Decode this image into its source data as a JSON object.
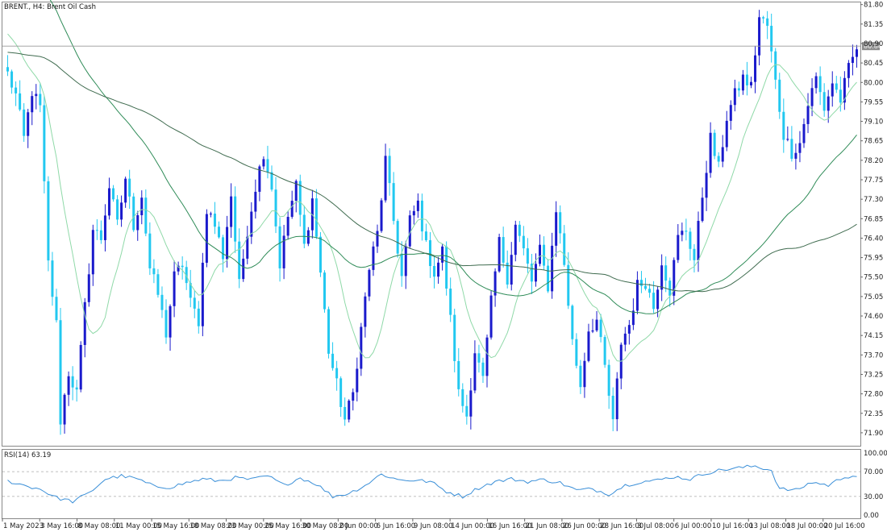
{
  "chart_data": {
    "type": "candlestick",
    "title": "BRENT., H4:  Brent Oil Cash",
    "colors": {
      "bull_candle": "#1a1acc",
      "bear_candle": "#22c8f0",
      "ma_fast": "#8fd9a8",
      "ma_mid": "#2e8b57",
      "ma_slow": "#3f6b4f",
      "rsi_line": "#3a8fd8",
      "grid": "#999999",
      "price_tag_bg": "#8c8c8c"
    },
    "price_axis": {
      "ylim": [
        71.6,
        81.85
      ],
      "ticks": [
        "81.80",
        "81.35",
        "80.90",
        "80.45",
        "80.00",
        "79.55",
        "79.10",
        "78.65",
        "78.20",
        "77.75",
        "77.30",
        "76.85",
        "76.40",
        "75.95",
        "75.50",
        "75.05",
        "74.60",
        "74.15",
        "73.70",
        "73.25",
        "72.80",
        "72.35",
        "71.90"
      ],
      "current_price": "80.84"
    },
    "time_axis": {
      "ticks": [
        "1 May 2023",
        "3 May 16:00",
        "8 May 08:00",
        "11 May 00:00",
        "15 May 16:00",
        "18 May 08:00",
        "23 May 00:00",
        "25 May 16:00",
        "30 May 08:00",
        "2 Jun 00:00",
        "6 Jun 16:00",
        "9 Jun 08:00",
        "14 Jun 00:00",
        "16 Jun 16:00",
        "21 Jun 08:00",
        "26 Jun 00:00",
        "28 Jun 16:00",
        "3 Jul 08:00",
        "6 Jul 00:00",
        "10 Jul 16:00",
        "13 Jul 08:00",
        "18 Jul 00:00",
        "20 Jul 16:00"
      ]
    },
    "price_path": [
      [
        0,
        80.2
      ],
      [
        2,
        79.7
      ],
      [
        4,
        78.7
      ],
      [
        6,
        79.8
      ],
      [
        8,
        79.4
      ],
      [
        10,
        75.8
      ],
      [
        12,
        74.4
      ],
      [
        13,
        72.2
      ],
      [
        15,
        73.3
      ],
      [
        17,
        72.8
      ],
      [
        19,
        74.8
      ],
      [
        21,
        76.6
      ],
      [
        23,
        76.4
      ],
      [
        25,
        77.6
      ],
      [
        27,
        76.7
      ],
      [
        29,
        77.8
      ],
      [
        31,
        76.7
      ],
      [
        33,
        77.4
      ],
      [
        35,
        75.7
      ],
      [
        37,
        75.1
      ],
      [
        39,
        74.2
      ],
      [
        41,
        75.5
      ],
      [
        43,
        75.8
      ],
      [
        45,
        74.9
      ],
      [
        47,
        74.5
      ],
      [
        49,
        77.1
      ],
      [
        51,
        76.7
      ],
      [
        53,
        76.0
      ],
      [
        55,
        77.4
      ],
      [
        57,
        75.3
      ],
      [
        59,
        76.6
      ],
      [
        61,
        77.6
      ],
      [
        63,
        78.4
      ],
      [
        65,
        77.6
      ],
      [
        67,
        75.8
      ],
      [
        69,
        76.9
      ],
      [
        71,
        77.6
      ],
      [
        73,
        76.2
      ],
      [
        75,
        77.3
      ],
      [
        77,
        75.6
      ],
      [
        79,
        73.8
      ],
      [
        81,
        73.0
      ],
      [
        83,
        72.2
      ],
      [
        85,
        72.8
      ],
      [
        87,
        74.3
      ],
      [
        89,
        75.7
      ],
      [
        91,
        76.5
      ],
      [
        93,
        78.2
      ],
      [
        95,
        76.8
      ],
      [
        97,
        75.5
      ],
      [
        99,
        76.8
      ],
      [
        101,
        77.2
      ],
      [
        103,
        76.2
      ],
      [
        105,
        75.6
      ],
      [
        107,
        76.1
      ],
      [
        109,
        74.5
      ],
      [
        111,
        72.8
      ],
      [
        113,
        72.3
      ],
      [
        115,
        73.8
      ],
      [
        117,
        73.1
      ],
      [
        119,
        74.9
      ],
      [
        121,
        76.3
      ],
      [
        123,
        75.5
      ],
      [
        125,
        76.7
      ],
      [
        127,
        76.1
      ],
      [
        129,
        75.4
      ],
      [
        131,
        76.1
      ],
      [
        133,
        75.3
      ],
      [
        135,
        77.1
      ],
      [
        137,
        75.8
      ],
      [
        139,
        74.0
      ],
      [
        141,
        73.0
      ],
      [
        143,
        74.3
      ],
      [
        145,
        74.5
      ],
      [
        147,
        73.4
      ],
      [
        149,
        72.1
      ],
      [
        151,
        74.0
      ],
      [
        153,
        74.4
      ],
      [
        155,
        75.3
      ],
      [
        157,
        75.4
      ],
      [
        159,
        74.8
      ],
      [
        161,
        75.9
      ],
      [
        163,
        75.2
      ],
      [
        165,
        76.4
      ],
      [
        167,
        76.6
      ],
      [
        169,
        75.9
      ],
      [
        171,
        77.4
      ],
      [
        173,
        78.7
      ],
      [
        175,
        78.0
      ],
      [
        177,
        79.2
      ],
      [
        179,
        79.7
      ],
      [
        181,
        80.1
      ],
      [
        183,
        79.9
      ],
      [
        185,
        81.5
      ],
      [
        187,
        81.3
      ],
      [
        189,
        80.0
      ],
      [
        191,
        78.8
      ],
      [
        193,
        78.4
      ],
      [
        195,
        78.6
      ],
      [
        197,
        79.5
      ],
      [
        199,
        80.1
      ],
      [
        201,
        79.4
      ],
      [
        203,
        80.0
      ],
      [
        205,
        79.6
      ],
      [
        207,
        80.3
      ],
      [
        209,
        80.8
      ]
    ],
    "rsi": {
      "label": "RSI(14) 63.19",
      "ylim": [
        0,
        100
      ],
      "ticks": [
        "100.00",
        "70.00",
        "30.00",
        "0.00"
      ],
      "levels": [
        70,
        30
      ],
      "values": [
        [
          0,
          55
        ],
        [
          4,
          48
        ],
        [
          8,
          42
        ],
        [
          12,
          28
        ],
        [
          16,
          22
        ],
        [
          20,
          35
        ],
        [
          24,
          58
        ],
        [
          28,
          63
        ],
        [
          32,
          58
        ],
        [
          36,
          46
        ],
        [
          40,
          45
        ],
        [
          44,
          52
        ],
        [
          48,
          58
        ],
        [
          52,
          55
        ],
        [
          56,
          60
        ],
        [
          60,
          57
        ],
        [
          64,
          63
        ],
        [
          68,
          48
        ],
        [
          72,
          60
        ],
        [
          76,
          50
        ],
        [
          80,
          30
        ],
        [
          84,
          35
        ],
        [
          88,
          48
        ],
        [
          92,
          66
        ],
        [
          96,
          57
        ],
        [
          100,
          56
        ],
        [
          104,
          54
        ],
        [
          108,
          38
        ],
        [
          112,
          30
        ],
        [
          116,
          44
        ],
        [
          120,
          54
        ],
        [
          124,
          58
        ],
        [
          128,
          54
        ],
        [
          132,
          57
        ],
        [
          136,
          52
        ],
        [
          140,
          40
        ],
        [
          144,
          42
        ],
        [
          148,
          34
        ],
        [
          152,
          48
        ],
        [
          156,
          54
        ],
        [
          160,
          56
        ],
        [
          164,
          62
        ],
        [
          168,
          58
        ],
        [
          172,
          68
        ],
        [
          176,
          73
        ],
        [
          180,
          76
        ],
        [
          184,
          79
        ],
        [
          188,
          72
        ],
        [
          190,
          42
        ],
        [
          194,
          40
        ],
        [
          198,
          53
        ],
        [
          202,
          48
        ],
        [
          206,
          62
        ],
        [
          209,
          63.19
        ]
      ]
    }
  }
}
